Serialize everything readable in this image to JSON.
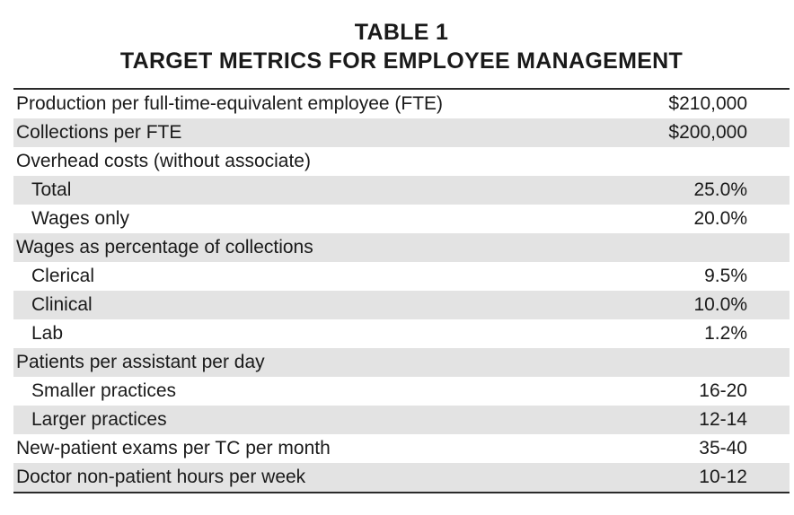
{
  "title": {
    "line1": "TABLE 1",
    "line2": "TARGET METRICS FOR EMPLOYEE MANAGEMENT"
  },
  "rows": [
    {
      "label": "Production per full-time-equivalent employee (FTE)",
      "value": "$210,000",
      "indent": false,
      "shaded": false
    },
    {
      "label": "Collections per FTE",
      "value": "$200,000",
      "indent": false,
      "shaded": true
    },
    {
      "label": "Overhead costs (without associate)",
      "value": "",
      "indent": false,
      "shaded": false
    },
    {
      "label": "Total",
      "value": "25.0%",
      "indent": true,
      "shaded": true
    },
    {
      "label": "Wages only",
      "value": "20.0%",
      "indent": true,
      "shaded": false
    },
    {
      "label": "Wages as percentage of collections",
      "value": "",
      "indent": false,
      "shaded": true
    },
    {
      "label": "Clerical",
      "value": "9.5%",
      "indent": true,
      "shaded": false
    },
    {
      "label": "Clinical",
      "value": "10.0%",
      "indent": true,
      "shaded": true
    },
    {
      "label": "Lab",
      "value": "1.2%",
      "indent": true,
      "shaded": false
    },
    {
      "label": "Patients per assistant per day",
      "value": "",
      "indent": false,
      "shaded": true
    },
    {
      "label": "Smaller practices",
      "value": "16-20",
      "indent": true,
      "shaded": false
    },
    {
      "label": "Larger practices",
      "value": "12-14",
      "indent": true,
      "shaded": true
    },
    {
      "label": "New-patient exams per TC per month",
      "value": "35-40",
      "indent": false,
      "shaded": false
    },
    {
      "label": "Doctor non-patient hours per week",
      "value": "10-12",
      "indent": false,
      "shaded": true
    }
  ],
  "colors": {
    "shade": "#e3e3e3",
    "rule": "#2a2a2a",
    "text": "#1a1a1a"
  }
}
